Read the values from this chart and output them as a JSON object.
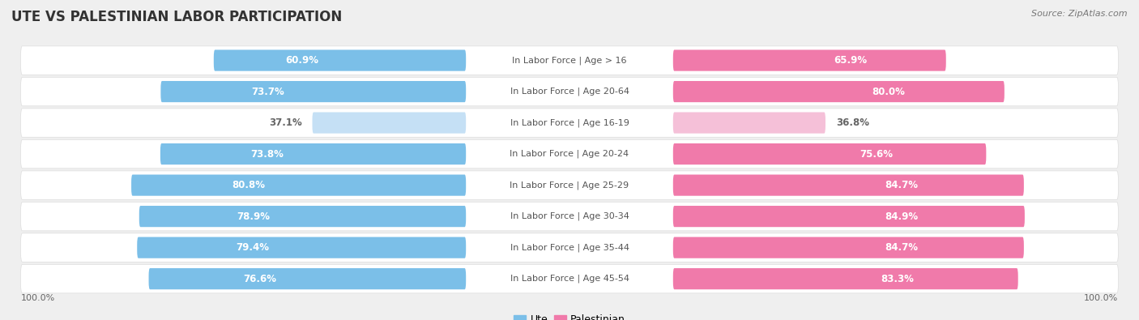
{
  "title": "UTE VS PALESTINIAN LABOR PARTICIPATION",
  "source": "Source: ZipAtlas.com",
  "categories": [
    "In Labor Force | Age > 16",
    "In Labor Force | Age 20-64",
    "In Labor Force | Age 16-19",
    "In Labor Force | Age 20-24",
    "In Labor Force | Age 25-29",
    "In Labor Force | Age 30-34",
    "In Labor Force | Age 35-44",
    "In Labor Force | Age 45-54"
  ],
  "ute_values": [
    60.9,
    73.7,
    37.1,
    73.8,
    80.8,
    78.9,
    79.4,
    76.6
  ],
  "palestinian_values": [
    65.9,
    80.0,
    36.8,
    75.6,
    84.7,
    84.9,
    84.7,
    83.3
  ],
  "ute_color": "#7bbfe8",
  "ute_light_color": "#c5e0f5",
  "palestinian_color": "#f07aaa",
  "palestinian_light_color": "#f5c0d8",
  "bg_color": "#efefef",
  "row_bg_color": "#ffffff",
  "title_color": "#333333",
  "source_color": "#777777",
  "label_white": "#ffffff",
  "label_dark": "#666666",
  "footer_color": "#666666",
  "legend_color": "#555555",
  "low_threshold": 45
}
